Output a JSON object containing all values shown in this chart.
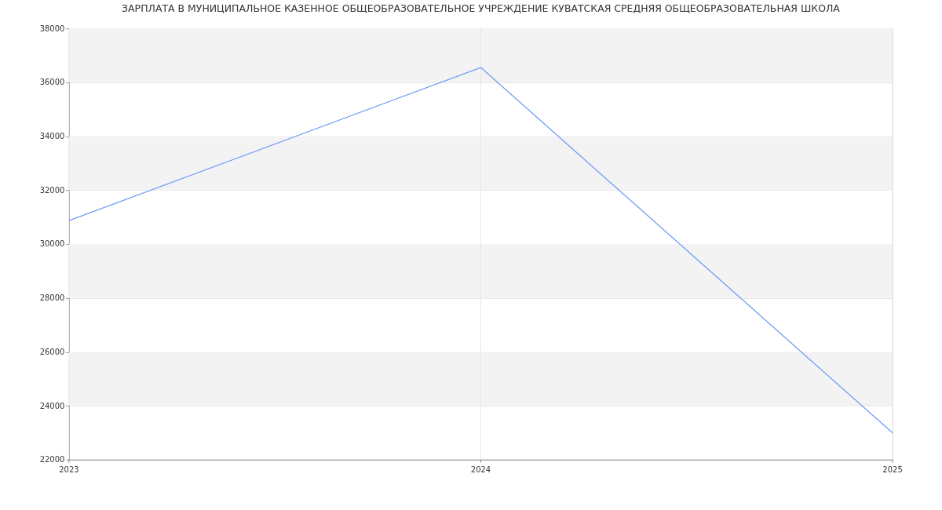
{
  "chart_data": {
    "type": "line",
    "title": "ЗАРПЛАТА В МУНИЦИПАЛЬНОЕ КАЗЕННОЕ ОБЩЕОБРАЗОВАТЕЛЬНОЕ УЧРЕЖДЕНИЕ КУВАТСКАЯ СРЕДНЯЯ ОБЩЕОБРАЗОВАТЕЛЬНАЯ ШКОЛА",
    "x": [
      2023,
      2024,
      2025
    ],
    "series": [
      {
        "color": "#6f9ef5",
        "values": [
          30870,
          36550,
          22990
        ]
      }
    ],
    "xlim": [
      2023,
      2025
    ],
    "xticks": [
      2023,
      2024,
      2025
    ],
    "ylim": [
      22000,
      38000
    ],
    "yticks": [
      22000,
      24000,
      26000,
      28000,
      30000,
      32000,
      34000,
      36000,
      38000
    ],
    "grid": true,
    "marker": "none",
    "line_style": "solid"
  }
}
